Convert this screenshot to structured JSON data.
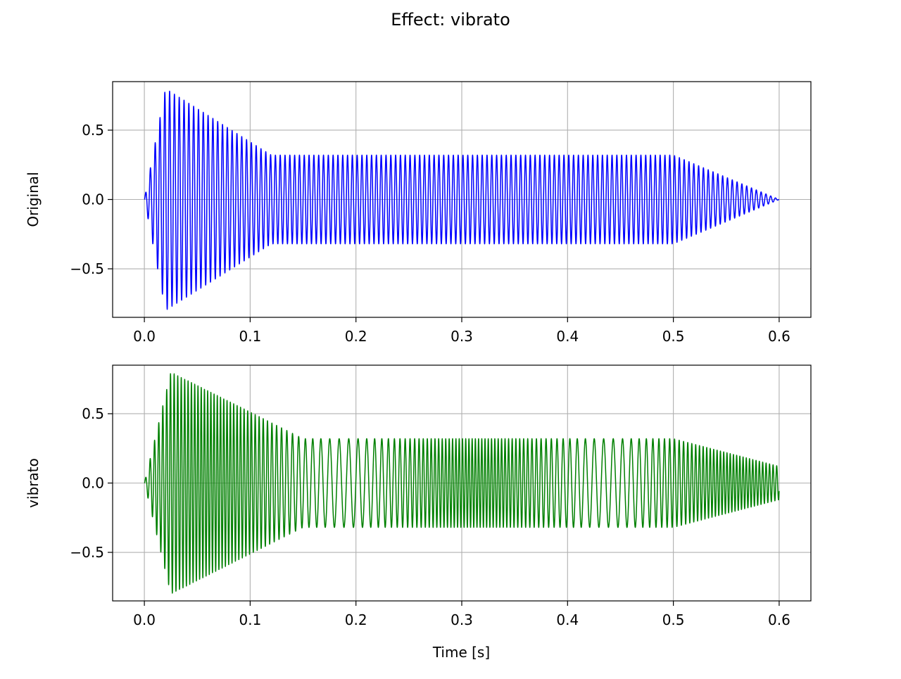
{
  "figure": {
    "title": "Effect: vibrato"
  },
  "chart_data": [
    {
      "type": "line",
      "title": "",
      "xlabel": "",
      "ylabel": "Original",
      "xlim": [
        -0.03,
        0.63
      ],
      "ylim": [
        -0.85,
        0.85
      ],
      "xticks": [
        0.0,
        0.1,
        0.2,
        0.3,
        0.4,
        0.5,
        0.6
      ],
      "xtick_labels": [
        "0.0",
        "0.1",
        "0.2",
        "0.3",
        "0.4",
        "0.5",
        "0.6"
      ],
      "yticks": [
        -0.5,
        0.0,
        0.5
      ],
      "ytick_labels": [
        "−0.5",
        "0.0",
        "0.5"
      ],
      "grid": true,
      "color": "#0000ff",
      "signal": {
        "duration": 0.6,
        "carrier_hz": 220,
        "vibrato_rate_hz": 0,
        "vibrato_depth": 0,
        "envelope": {
          "t": [
            0.0,
            0.02,
            0.12,
            0.5,
            0.6
          ],
          "a": [
            0.0,
            0.8,
            0.32,
            0.32,
            0.0
          ]
        }
      }
    },
    {
      "type": "line",
      "title": "",
      "xlabel": "Time [s]",
      "ylabel": "vibrato",
      "xlim": [
        -0.03,
        0.63
      ],
      "ylim": [
        -0.85,
        0.85
      ],
      "xticks": [
        0.0,
        0.1,
        0.2,
        0.3,
        0.4,
        0.5,
        0.6
      ],
      "xtick_labels": [
        "0.0",
        "0.1",
        "0.2",
        "0.3",
        "0.4",
        "0.5",
        "0.6"
      ],
      "yticks": [
        -0.5,
        0.0,
        0.5
      ],
      "ytick_labels": [
        "−0.5",
        "0.0",
        "0.5"
      ],
      "grid": true,
      "color": "#008000",
      "signal": {
        "duration": 0.6,
        "carrier_hz": 220,
        "vibrato_rate_hz": 4,
        "vibrato_depth": 0.5,
        "envelope": {
          "t": [
            0.0,
            0.025,
            0.15,
            0.5,
            0.6
          ],
          "a": [
            0.0,
            0.8,
            0.32,
            0.32,
            0.12
          ]
        }
      }
    }
  ]
}
